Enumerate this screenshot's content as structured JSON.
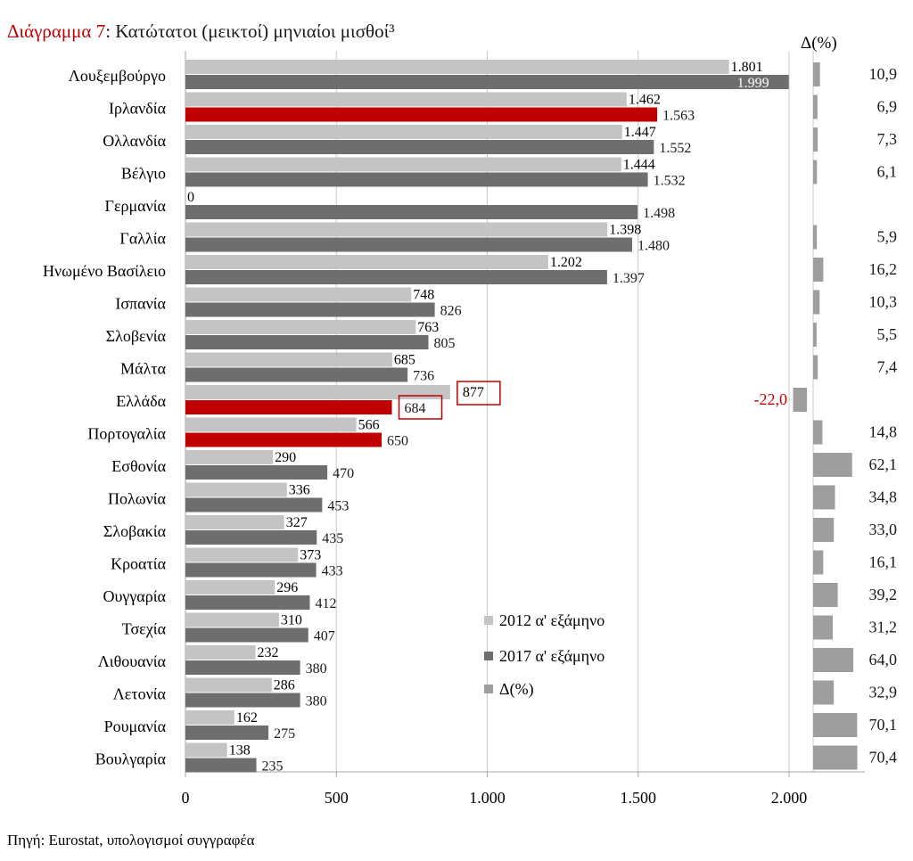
{
  "chart_data": {
    "type": "bar",
    "orientation": "horizontal",
    "title_prefix": "Διάγραμμα 7",
    "title": ": Κατώτατοι (μεικτοί) μηνιαίοι μισθοί³",
    "delta_header": "Δ(%)",
    "source": "Πηγή: Eurostat, υπολογισμοί συγγραφέα",
    "categories": [
      "Λουξεμβούργο",
      "Ιρλανδία",
      "Ολλανδία",
      "Βέλγιο",
      "Γερμανία",
      "Γαλλία",
      "Ηνωμένο Βασίλειο",
      "Ισπανία",
      "Σλοβενία",
      "Μάλτα",
      "Ελλάδα",
      "Πορτογαλία",
      "Εσθονία",
      "Πολωνία",
      "Σλοβακία",
      "Κροατία",
      "Ουγγαρία",
      "Τσεχία",
      "Λιθουανία",
      "Λετονία",
      "Ρουμανία",
      "Βουλγαρία"
    ],
    "series": [
      {
        "name": "2012 α' εξάμηνο",
        "color": "#c4c4c4",
        "values": [
          1801,
          1462,
          1447,
          1444,
          0,
          1398,
          1202,
          748,
          763,
          685,
          877,
          566,
          290,
          336,
          327,
          373,
          296,
          310,
          232,
          286,
          162,
          138
        ],
        "labels": [
          "1.801",
          "1.462",
          "1.447",
          "1.444",
          "0",
          "1.398",
          "1.202",
          "748",
          "763",
          "685",
          "877",
          "566",
          "290",
          "336",
          "327",
          "373",
          "296",
          "310",
          "232",
          "286",
          "162",
          "138"
        ]
      },
      {
        "name": "2017 α' εξάμηνο",
        "color": "#6e6e6e",
        "values": [
          1999,
          1563,
          1552,
          1532,
          1498,
          1480,
          1397,
          826,
          805,
          736,
          684,
          650,
          470,
          453,
          435,
          433,
          412,
          407,
          380,
          380,
          275,
          235
        ],
        "labels": [
          "1.999",
          "1.563",
          "1.552",
          "1.532",
          "1.498",
          "1.480",
          "1.397",
          "826",
          "805",
          "736",
          "684",
          "650",
          "470",
          "453",
          "435",
          "433",
          "412",
          "407",
          "380",
          "380",
          "275",
          "235"
        ]
      },
      {
        "name": "Δ(%)",
        "color": "#9e9e9e",
        "values": [
          10.9,
          6.9,
          7.3,
          6.1,
          null,
          5.9,
          16.2,
          10.3,
          5.5,
          7.4,
          -22.0,
          14.8,
          62.1,
          34.8,
          33.0,
          16.1,
          39.2,
          31.2,
          64.0,
          32.9,
          70.1,
          70.4
        ],
        "labels": [
          "10,9",
          "6,9",
          "7,3",
          "6,1",
          "",
          "5,9",
          "16,2",
          "10,3",
          "5,5",
          "7,4",
          "-22,0",
          "14,8",
          "62,1",
          "34,8",
          "33,0",
          "16,1",
          "39,2",
          "31,2",
          "64,0",
          "32,9",
          "70,1",
          "70,4"
        ]
      }
    ],
    "highlight_categories": [
      "Ιρλανδία",
      "Ελλάδα",
      "Πορτογαλία"
    ],
    "highlight_color": "#c00000",
    "boxed_labels": [
      "Ελλάδα"
    ],
    "xlim": [
      0,
      2000
    ],
    "xticks": [
      0,
      500,
      1000,
      1500,
      2000
    ],
    "xtick_labels": [
      "0",
      "500",
      "1.000",
      "1.500",
      "2.000"
    ],
    "delta_lim": [
      -22,
      71
    ],
    "grid": true,
    "legend_position": "bottom-right"
  }
}
